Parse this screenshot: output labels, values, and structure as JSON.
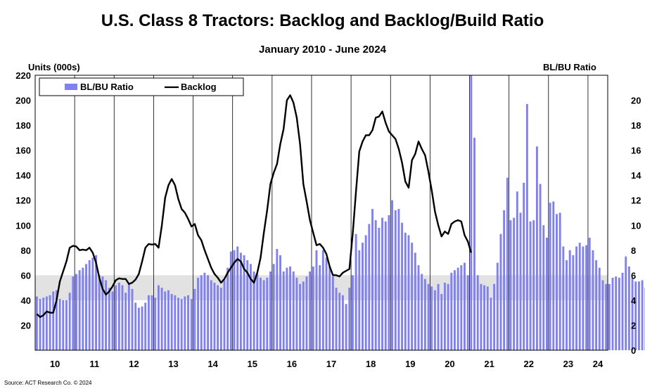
{
  "chart_data": {
    "type": "bar+line",
    "title": "U.S. Class 8 Tractors: Backlog and Backlog/Build Ratio",
    "subtitle": "January 2010 - June 2024",
    "ylabel_left": "Units (000s)",
    "ylabel_right": "BL/BU Ratio",
    "source": "Source: ACT Research Co. © 2024",
    "ylim_left": [
      0,
      220
    ],
    "yticks_left": [
      20,
      40,
      60,
      80,
      100,
      120,
      140,
      160,
      180,
      200,
      220
    ],
    "ylim_right": [
      0,
      22
    ],
    "yticks_right": [
      0,
      2,
      4,
      6,
      8,
      10,
      12,
      14,
      16,
      18,
      20
    ],
    "shaded_band_left": [
      40,
      60
    ],
    "x_labels": [
      "10",
      "11",
      "12",
      "13",
      "14",
      "15",
      "16",
      "17",
      "18",
      "19",
      "20",
      "21",
      "22",
      "23",
      "24"
    ],
    "legend": {
      "bar_label": "BL/BU Ratio",
      "line_label": "Backlog",
      "placement": "top-left"
    },
    "colors": {
      "bar": "#8080ee",
      "line": "#000000",
      "band": "#e2e2e2"
    },
    "series": [
      {
        "name": "BL/BU Ratio",
        "axis": "right",
        "kind": "bar",
        "values": [
          4.3,
          4.1,
          4.2,
          4.3,
          4.4,
          4.7,
          4.8,
          4.1,
          4.0,
          4.0,
          4.6,
          5.9,
          6.1,
          6.4,
          6.6,
          6.9,
          7.2,
          7.4,
          7.6,
          6.0,
          5.9,
          5.6,
          5.0,
          4.7,
          5.2,
          5.4,
          5.2,
          4.6,
          5.4,
          4.9,
          3.8,
          3.4,
          3.5,
          3.8,
          4.4,
          4.4,
          4.2,
          5.2,
          5.0,
          4.7,
          4.8,
          4.5,
          4.4,
          4.2,
          4.1,
          4.3,
          4.4,
          4.1,
          4.9,
          5.8,
          6.0,
          6.2,
          6.0,
          5.6,
          5.4,
          5.2,
          5.0,
          5.6,
          6.6,
          7.9,
          8.0,
          8.3,
          7.8,
          7.6,
          7.2,
          6.9,
          6.3,
          6.1,
          5.8,
          5.6,
          5.8,
          6.3,
          6.9,
          8.1,
          7.6,
          6.3,
          6.6,
          6.7,
          6.3,
          5.8,
          5.3,
          5.5,
          5.9,
          6.3,
          6.7,
          8.0,
          6.8,
          8.0,
          7.4,
          6.7,
          5.9,
          5.0,
          4.6,
          4.4,
          3.7,
          5.0,
          6.0,
          9.3,
          8.0,
          8.6,
          9.2,
          10.1,
          11.3,
          10.4,
          9.8,
          10.6,
          10.3,
          10.8,
          12.0,
          11.2,
          11.3,
          10.2,
          9.4,
          9.2,
          8.6,
          7.8,
          6.8,
          6.1,
          5.7,
          5.3,
          5.1,
          4.8,
          5.3,
          4.5,
          5.4,
          5.3,
          6.2,
          6.4,
          6.6,
          6.8,
          7.0,
          6.0,
          22.0,
          17.0,
          6.0,
          5.3,
          5.2,
          5.1,
          4.2,
          5.3,
          7.0,
          9.3,
          11.2,
          13.8,
          10.4,
          10.6,
          12.7,
          11.0,
          13.4,
          19.7,
          10.3,
          10.4,
          16.3,
          13.3,
          10.0,
          9.0,
          11.8,
          11.9,
          10.9,
          11.0,
          8.3,
          7.2,
          8.0,
          7.6,
          8.3,
          8.6,
          8.3,
          8.4,
          9.0,
          8.0,
          7.2,
          6.6,
          5.6,
          5.3,
          5.3,
          5.8,
          5.9,
          5.8,
          6.2,
          7.5,
          6.7,
          5.8,
          5.5,
          5.5,
          5.6,
          5.0
        ]
      },
      {
        "name": "Backlog",
        "axis": "left",
        "kind": "line",
        "anchors": [
          [
            0,
            29
          ],
          [
            2,
            26.5
          ],
          [
            4,
            28
          ],
          [
            6,
            31
          ],
          [
            8,
            30
          ],
          [
            10,
            30
          ],
          [
            12,
            40
          ],
          [
            14,
            55
          ],
          [
            16,
            63
          ],
          [
            18,
            71
          ],
          [
            20,
            82
          ],
          [
            22,
            83.5
          ],
          [
            24,
            83
          ],
          [
            26,
            80
          ],
          [
            28,
            80.5
          ],
          [
            30,
            80
          ],
          [
            32,
            82
          ],
          [
            34,
            78
          ],
          [
            36,
            70
          ],
          [
            38,
            58
          ],
          [
            40,
            49
          ],
          [
            42,
            44.5
          ],
          [
            44,
            47
          ],
          [
            46,
            51
          ],
          [
            48,
            56
          ],
          [
            50,
            57.5
          ],
          [
            52,
            57
          ],
          [
            54,
            57
          ],
          [
            56,
            53
          ],
          [
            58,
            54
          ],
          [
            60,
            56.5
          ],
          [
            62,
            61
          ],
          [
            64,
            71
          ],
          [
            66,
            82
          ],
          [
            68,
            85
          ],
          [
            70,
            84.5
          ],
          [
            72,
            85
          ],
          [
            74,
            82
          ],
          [
            76,
            100
          ],
          [
            78,
            122
          ],
          [
            80,
            132
          ],
          [
            82,
            137
          ],
          [
            84,
            132
          ],
          [
            86,
            121
          ],
          [
            88,
            113
          ],
          [
            90,
            110
          ],
          [
            92,
            105
          ],
          [
            94,
            99
          ],
          [
            96,
            101
          ],
          [
            98,
            92
          ],
          [
            100,
            88
          ],
          [
            102,
            80
          ],
          [
            104,
            73
          ],
          [
            106,
            66
          ],
          [
            108,
            61
          ],
          [
            110,
            58
          ],
          [
            112,
            54
          ],
          [
            114,
            57
          ],
          [
            116,
            62
          ],
          [
            118,
            66
          ],
          [
            120,
            70
          ],
          [
            122,
            73
          ],
          [
            124,
            71
          ],
          [
            126,
            65
          ],
          [
            128,
            62
          ],
          [
            130,
            57
          ],
          [
            132,
            54
          ],
          [
            134,
            62
          ],
          [
            136,
            74
          ],
          [
            138,
            94
          ],
          [
            140,
            112
          ],
          [
            142,
            133
          ],
          [
            144,
            142
          ],
          [
            146,
            149
          ],
          [
            148,
            165
          ],
          [
            150,
            177
          ],
          [
            152,
            200
          ],
          [
            154,
            204
          ],
          [
            156,
            198
          ],
          [
            158,
            186
          ],
          [
            160,
            165
          ],
          [
            162,
            133
          ],
          [
            164,
            119
          ],
          [
            166,
            104
          ],
          [
            168,
            94
          ],
          [
            170,
            84
          ],
          [
            172,
            85
          ],
          [
            174,
            82
          ],
          [
            176,
            77
          ],
          [
            178,
            67
          ],
          [
            180,
            60
          ],
          [
            182,
            60
          ],
          [
            184,
            59
          ],
          [
            186,
            62
          ],
          [
            188,
            63.5
          ],
          [
            190,
            65
          ],
          [
            192,
            93
          ],
          [
            194,
            127
          ],
          [
            196,
            159
          ],
          [
            198,
            167
          ],
          [
            200,
            172
          ],
          [
            202,
            172
          ],
          [
            204,
            176
          ],
          [
            206,
            186
          ],
          [
            208,
            187
          ],
          [
            210,
            191
          ],
          [
            212,
            182
          ],
          [
            214,
            175
          ],
          [
            216,
            172
          ],
          [
            218,
            169
          ],
          [
            220,
            161
          ],
          [
            222,
            150
          ],
          [
            224,
            135
          ],
          [
            226,
            130
          ],
          [
            228,
            152
          ],
          [
            230,
            157
          ],
          [
            232,
            167
          ],
          [
            234,
            161
          ],
          [
            236,
            156
          ],
          [
            238,
            143
          ],
          [
            240,
            128
          ],
          [
            242,
            111
          ],
          [
            244,
            100
          ],
          [
            246,
            91
          ],
          [
            248,
            95
          ],
          [
            250,
            93
          ],
          [
            252,
            101
          ],
          [
            254,
            103
          ],
          [
            256,
            104
          ],
          [
            258,
            103
          ],
          [
            260,
            92
          ],
          [
            262,
            87
          ],
          [
            264,
            78
          ]
        ]
      }
    ]
  }
}
